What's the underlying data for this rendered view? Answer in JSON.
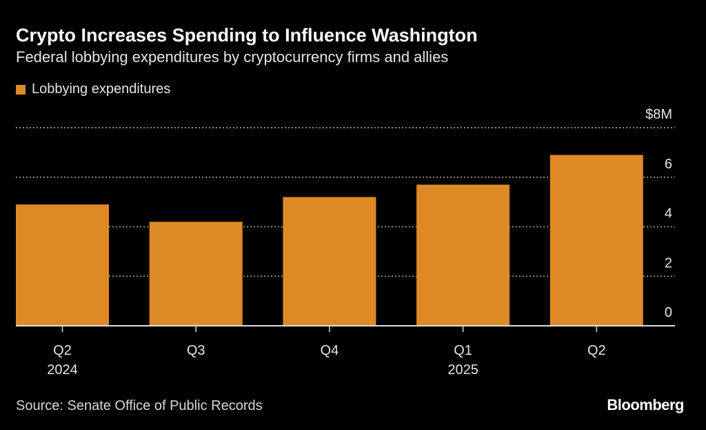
{
  "title": "Crypto Increases Spending to Influence Washington",
  "subtitle": "Federal lobbying expenditures by cryptocurrency firms and allies",
  "source": "Source: Senate Office of Public Records",
  "logo": "Bloomberg",
  "chart_data": {
    "type": "bar",
    "categories": [
      "Q2",
      "Q3",
      "Q4",
      "Q1",
      "Q2"
    ],
    "category_years": [
      "2024",
      "",
      "",
      "2025",
      ""
    ],
    "series": [
      {
        "name": "Lobbying expenditures",
        "color": "#dd8a26",
        "values": [
          4.9,
          4.2,
          5.2,
          5.7,
          6.9
        ]
      }
    ],
    "ylim": [
      0,
      8
    ],
    "yticks": [
      0,
      2,
      4,
      6,
      8
    ],
    "ytick_labels": [
      "0",
      "2",
      "4",
      "6",
      "$8M"
    ],
    "ylabel": "",
    "xlabel": "",
    "grid": true,
    "legend_position": "top-left"
  }
}
